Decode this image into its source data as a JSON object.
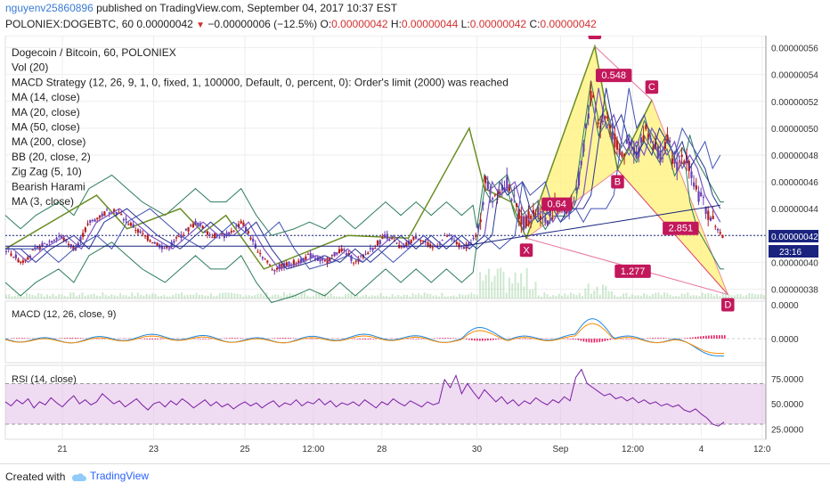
{
  "header": {
    "author": "nguyenv25860896",
    "published": "published on TradingView.com, September 04, 2017 10:37 EST",
    "symbol": "POLONIEX:DOGEBTC, 60",
    "last": "0.00000042",
    "arrow": "▼",
    "change": "−0.00000006 (−12.5%)",
    "o_label": "O:",
    "o": "0.00000042",
    "h_label": "H:",
    "h": "0.00000044",
    "l_label": "L:",
    "l": "0.00000042",
    "c_label": "C:",
    "c": "0.00000042"
  },
  "legend": [
    "Dogecoin / Bitcoin, 60, POLONIEX",
    "Vol (20)",
    "MACD Strategy (12, 26, 9, 1, 0, fixed, 1, 100000, Default, 0, percent, 0): Order's limit (2000) was reached",
    "MA (14, close)",
    "MA (20, close)",
    "MA (50, close)",
    "MA (200, close)",
    "BB (20, close, 2)",
    "Zig Zag (5, 10)",
    "Bearish Harami",
    "MA (3, close)"
  ],
  "macd_label": "MACD (12, 26, close, 9)",
  "rsi_label": "RSI (14, close)",
  "price_badge": "0.00000042",
  "countdown_badge": "23:16",
  "pattern_labels": {
    "A": "A",
    "B": "B",
    "C": "C",
    "X": "X",
    "D": "D",
    "r1": "0.548",
    "r2": "2.851",
    "r3": "1.277",
    "r4": "0.64"
  },
  "footer": {
    "created": "Created with",
    "brand": "TradingView"
  },
  "colors": {
    "up": "#6a3fb5",
    "down": "#b71c1c",
    "bb": "#2e7d5b",
    "zigzag": "#6a8e23",
    "ma": "#3949ab",
    "pattern_fill": "#fff176",
    "pattern_line": "#d81b60",
    "macd": "#1e88e5",
    "signal": "#fb8c00",
    "hist": "#e91e63",
    "rsi": "#7b1fa2"
  },
  "chart_data": [
    {
      "type": "candlestick",
      "title": "Dogecoin / Bitcoin, 60, POLONIEX",
      "x_ticks": [
        "21",
        "23",
        "25",
        "12:00",
        "28",
        "30",
        "Sep",
        "12:00",
        "4",
        "12:0"
      ],
      "y_ticks": [
        "0.00000056",
        "0.00000054",
        "0.00000052",
        "0.00000050",
        "0.00000048",
        "0.00000046",
        "0.00000044",
        "0.00000042",
        "0.00000040",
        "0.00000038"
      ],
      "ylim": [
        3.73e-07,
        5.69e-07
      ],
      "close_points": [
        {
          "x": 0,
          "y": 4.1e-07
        },
        {
          "x": 0.02,
          "y": 4e-07
        },
        {
          "x": 0.04,
          "y": 4.1e-07
        },
        {
          "x": 0.07,
          "y": 4.2e-07
        },
        {
          "x": 0.09,
          "y": 4.1e-07
        },
        {
          "x": 0.11,
          "y": 4.3e-07
        },
        {
          "x": 0.14,
          "y": 4.4e-07
        },
        {
          "x": 0.16,
          "y": 4.3e-07
        },
        {
          "x": 0.18,
          "y": 4.2e-07
        },
        {
          "x": 0.21,
          "y": 4.1e-07
        },
        {
          "x": 0.23,
          "y": 4.2e-07
        },
        {
          "x": 0.25,
          "y": 4.3e-07
        },
        {
          "x": 0.27,
          "y": 4.2e-07
        },
        {
          "x": 0.29,
          "y": 4.2e-07
        },
        {
          "x": 0.31,
          "y": 4.3e-07
        },
        {
          "x": 0.33,
          "y": 4.1e-07
        },
        {
          "x": 0.35,
          "y": 3.95e-07
        },
        {
          "x": 0.38,
          "y": 4e-07
        },
        {
          "x": 0.4,
          "y": 4.05e-07
        },
        {
          "x": 0.42,
          "y": 4e-07
        },
        {
          "x": 0.44,
          "y": 4.1e-07
        },
        {
          "x": 0.46,
          "y": 4e-07
        },
        {
          "x": 0.48,
          "y": 4.1e-07
        },
        {
          "x": 0.5,
          "y": 4.2e-07
        },
        {
          "x": 0.52,
          "y": 4.1e-07
        },
        {
          "x": 0.54,
          "y": 4.2e-07
        },
        {
          "x": 0.56,
          "y": 4.1e-07
        },
        {
          "x": 0.58,
          "y": 4.2e-07
        },
        {
          "x": 0.6,
          "y": 4.1e-07
        },
        {
          "x": 0.62,
          "y": 4.2e-07
        },
        {
          "x": 0.63,
          "y": 4.6e-07
        },
        {
          "x": 0.64,
          "y": 4.5e-07
        },
        {
          "x": 0.66,
          "y": 4.6e-07
        },
        {
          "x": 0.67,
          "y": 4.4e-07
        },
        {
          "x": 0.68,
          "y": 4.3e-07
        },
        {
          "x": 0.7,
          "y": 4.4e-07
        },
        {
          "x": 0.71,
          "y": 4.3e-07
        },
        {
          "x": 0.72,
          "y": 4.4e-07
        },
        {
          "x": 0.74,
          "y": 4.4e-07
        },
        {
          "x": 0.75,
          "y": 4.5e-07
        },
        {
          "x": 0.76,
          "y": 4.9e-07
        },
        {
          "x": 0.77,
          "y": 5.3e-07
        },
        {
          "x": 0.78,
          "y": 5e-07
        },
        {
          "x": 0.79,
          "y": 5.1e-07
        },
        {
          "x": 0.8,
          "y": 4.9e-07
        },
        {
          "x": 0.81,
          "y": 4.8e-07
        },
        {
          "x": 0.82,
          "y": 4.9e-07
        },
        {
          "x": 0.83,
          "y": 4.8e-07
        },
        {
          "x": 0.84,
          "y": 5e-07
        },
        {
          "x": 0.85,
          "y": 4.9e-07
        },
        {
          "x": 0.86,
          "y": 4.8e-07
        },
        {
          "x": 0.87,
          "y": 4.9e-07
        },
        {
          "x": 0.88,
          "y": 4.7e-07
        },
        {
          "x": 0.89,
          "y": 4.8e-07
        },
        {
          "x": 0.9,
          "y": 4.7e-07
        },
        {
          "x": 0.91,
          "y": 4.5e-07
        },
        {
          "x": 0.92,
          "y": 4.4e-07
        },
        {
          "x": 0.93,
          "y": 4.3e-07
        },
        {
          "x": 0.94,
          "y": 4.2e-07
        }
      ],
      "harmonic_pattern": {
        "X": {
          "x": 0.685,
          "y": 4.18e-07
        },
        "A": {
          "x": 0.775,
          "y": 5.61e-07
        },
        "B": {
          "x": 0.805,
          "y": 4.69e-07
        },
        "C": {
          "x": 0.85,
          "y": 5.21e-07
        },
        "D": {
          "x": 0.95,
          "y": 3.76e-07
        }
      }
    },
    {
      "type": "line",
      "title": "MACD (12, 26, close, 9)",
      "y_ticks": [
        "0.0000",
        "0.0000"
      ]
    },
    {
      "type": "line",
      "title": "RSI (14, close)",
      "y_ticks": [
        "75.0000",
        "50.0000",
        "25.0000"
      ],
      "ylim": [
        15,
        88
      ],
      "values": [
        52,
        48,
        54,
        50,
        55,
        46,
        52,
        49,
        56,
        51,
        47,
        53,
        58,
        50,
        54,
        49,
        52,
        60,
        55,
        50,
        53,
        47,
        51,
        55,
        49,
        44,
        50,
        52,
        47,
        53,
        49,
        55,
        51,
        46,
        50,
        54,
        48,
        52,
        47,
        50,
        45,
        49,
        52,
        48,
        51,
        46,
        50,
        53,
        47,
        51,
        49,
        54,
        48,
        52,
        50,
        55,
        49,
        53,
        47,
        51,
        49,
        52,
        48,
        54,
        50,
        46,
        52,
        49,
        55,
        51,
        48,
        53,
        50,
        47,
        52,
        49,
        51,
        74,
        66,
        78,
        60,
        70,
        62,
        55,
        64,
        58,
        52,
        57,
        50,
        54,
        48,
        53,
        50,
        56,
        52,
        49,
        54,
        51,
        57,
        53,
        76,
        84,
        70,
        66,
        62,
        58,
        60,
        55,
        57,
        53,
        56,
        51,
        54,
        50,
        52,
        48,
        50,
        47,
        49,
        44,
        42,
        45,
        40,
        36,
        30,
        28,
        32
      ]
    }
  ]
}
